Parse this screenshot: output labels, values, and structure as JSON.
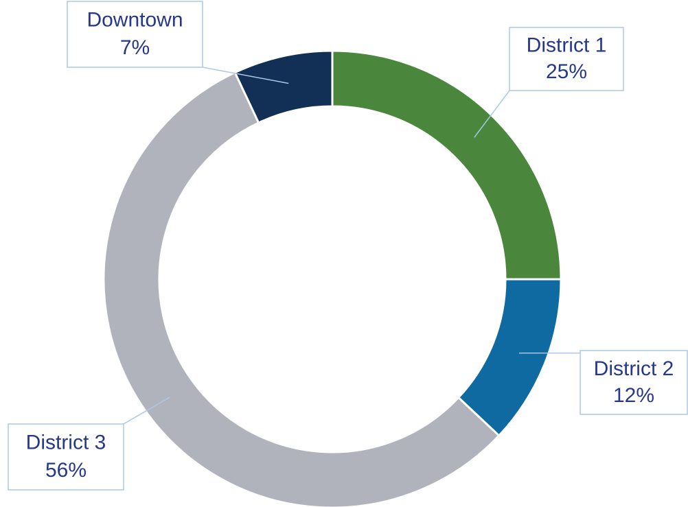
{
  "chart_data": {
    "type": "donut",
    "categories": [
      "District 1",
      "District 2",
      "District 3",
      "Downtown"
    ],
    "values": [
      25,
      12,
      56,
      7
    ],
    "value_labels": [
      "25%",
      "12%",
      "56%",
      "7%"
    ],
    "colors": [
      "#4a873d",
      "#0e6aa1",
      "#b0b3bc",
      "#122f55"
    ]
  }
}
